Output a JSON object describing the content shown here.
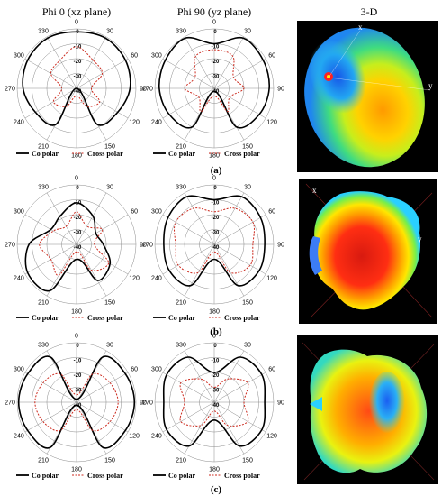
{
  "headers": [
    "Phi 0 (xz plane)",
    "Phi 90 (yz plane)",
    "3-D"
  ],
  "angle_ticks": [
    "0",
    "30",
    "60",
    "90",
    "120",
    "150",
    "180",
    "210",
    "240",
    "270",
    "300",
    "330"
  ],
  "radial_ticks": [
    "0",
    "-10",
    "-20",
    "-30",
    "-40"
  ],
  "legend": {
    "co": "Co polar",
    "cross": "Cross polar"
  },
  "rows": [
    {
      "caption": "(a)",
      "axis_x": "x",
      "axis_y": "y"
    },
    {
      "caption": "(b)",
      "axis_x": "x",
      "axis_y": "y"
    },
    {
      "caption": "(c)",
      "axis_x": "",
      "axis_y": ""
    }
  ],
  "colors": {
    "co": "#000000",
    "cross": "#cc2a1e",
    "grid": "#8a8a8a",
    "panel": "#000000"
  },
  "chart_data": [
    {
      "type": "polar",
      "row": "a",
      "plane": "Phi 0 (xz plane)",
      "rlim": [
        -40,
        0
      ],
      "series": [
        {
          "name": "Co polar",
          "theta": [
            0,
            30,
            60,
            90,
            120,
            150,
            180,
            210,
            240,
            270,
            300,
            330
          ],
          "r": [
            -2,
            -1,
            -2,
            -4,
            -8,
            -12,
            -40,
            -12,
            -8,
            -4,
            -2,
            -1
          ]
        },
        {
          "name": "Cross polar",
          "theta": [
            0,
            30,
            60,
            90,
            120,
            150,
            180,
            210,
            240,
            270,
            300,
            330
          ],
          "r": [
            -12,
            -18,
            -20,
            -30,
            -22,
            -26,
            -35,
            -26,
            -22,
            -30,
            -20,
            -18
          ]
        }
      ]
    },
    {
      "type": "polar",
      "row": "a",
      "plane": "Phi 90 (yz plane)",
      "rlim": [
        -40,
        0
      ],
      "series": [
        {
          "name": "Co polar",
          "theta": [
            0,
            30,
            60,
            90,
            120,
            150,
            180,
            210,
            240,
            270,
            300,
            330
          ],
          "r": [
            -10,
            -1,
            -2,
            -3,
            -5,
            -10,
            -38,
            -10,
            -5,
            -3,
            -2,
            -1
          ]
        },
        {
          "name": "Cross polar",
          "theta": [
            0,
            30,
            60,
            90,
            120,
            150,
            180,
            210,
            240,
            270,
            300,
            330
          ],
          "r": [
            -14,
            -15,
            -25,
            -20,
            -28,
            -22,
            -35,
            -22,
            -28,
            -20,
            -25,
            -15
          ]
        }
      ]
    },
    {
      "type": "polar",
      "row": "b",
      "plane": "Phi 0 (xz plane)",
      "rlim": [
        -40,
        0
      ],
      "series": [
        {
          "name": "Co polar",
          "theta": [
            0,
            30,
            60,
            90,
            120,
            150,
            180,
            210,
            240,
            270,
            300,
            330
          ],
          "r": [
            -12,
            -18,
            -25,
            -22,
            -14,
            -12,
            -30,
            -4,
            -2,
            -8,
            -20,
            -18
          ]
        },
        {
          "name": "Cross polar",
          "theta": [
            0,
            30,
            60,
            90,
            120,
            150,
            180,
            210,
            240,
            270,
            300,
            330
          ],
          "r": [
            -18,
            -26,
            -20,
            -28,
            -15,
            -20,
            -35,
            -16,
            -20,
            -15,
            -22,
            -26
          ]
        }
      ]
    },
    {
      "type": "polar",
      "row": "b",
      "plane": "Phi 90 (yz plane)",
      "rlim": [
        -40,
        0
      ],
      "series": [
        {
          "name": "Co polar",
          "theta": [
            0,
            30,
            60,
            90,
            120,
            150,
            180,
            210,
            240,
            270,
            300,
            330
          ],
          "r": [
            -10,
            -3,
            -4,
            -6,
            -5,
            -8,
            -30,
            -8,
            -5,
            -6,
            -4,
            -3
          ]
        },
        {
          "name": "Cross polar",
          "theta": [
            0,
            30,
            60,
            90,
            120,
            150,
            180,
            210,
            240,
            270,
            300,
            330
          ],
          "r": [
            -18,
            -12,
            -10,
            -14,
            -12,
            -18,
            -35,
            -18,
            -12,
            -14,
            -10,
            -12
          ]
        }
      ]
    },
    {
      "type": "polar",
      "row": "c",
      "plane": "Phi 0 (xz plane)",
      "rlim": [
        -40,
        0
      ],
      "series": [
        {
          "name": "Co polar",
          "theta": [
            0,
            30,
            60,
            90,
            120,
            150,
            180,
            210,
            240,
            270,
            300,
            330
          ],
          "r": [
            -38,
            -5,
            -2,
            -1,
            -2,
            -5,
            -38,
            -5,
            -2,
            -1,
            -2,
            -5
          ]
        },
        {
          "name": "Cross polar",
          "theta": [
            0,
            30,
            60,
            90,
            120,
            150,
            180,
            210,
            240,
            270,
            300,
            330
          ],
          "r": [
            -35,
            -18,
            -14,
            -12,
            -14,
            -18,
            -35,
            -18,
            -14,
            -12,
            -14,
            -18
          ]
        }
      ]
    },
    {
      "type": "polar",
      "row": "c",
      "plane": "Phi 90 (yz plane)",
      "rlim": [
        -40,
        0
      ],
      "series": [
        {
          "name": "Co polar",
          "theta": [
            0,
            30,
            60,
            90,
            120,
            150,
            180,
            210,
            240,
            270,
            300,
            330
          ],
          "r": [
            -20,
            -5,
            -3,
            -6,
            -3,
            -6,
            -28,
            -6,
            -3,
            -6,
            -3,
            -5
          ]
        },
        {
          "name": "Cross polar",
          "theta": [
            0,
            30,
            60,
            90,
            120,
            150,
            180,
            210,
            240,
            270,
            300,
            330
          ],
          "r": [
            -30,
            -22,
            -14,
            -20,
            -14,
            -22,
            -34,
            -22,
            -14,
            -20,
            -14,
            -22
          ]
        }
      ]
    }
  ]
}
